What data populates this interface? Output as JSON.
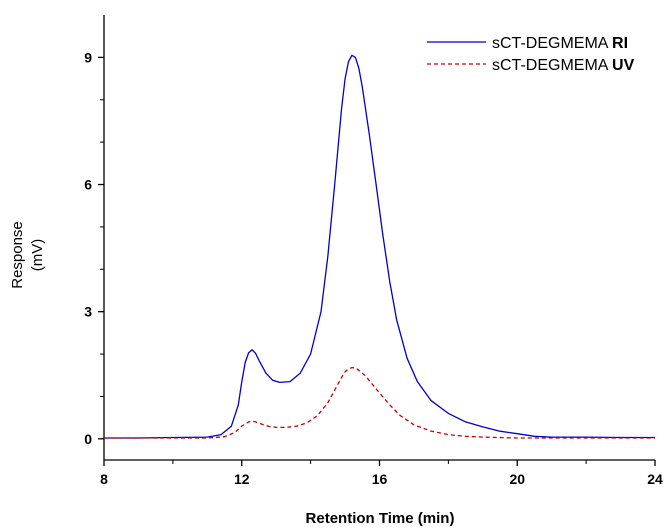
{
  "chart_data": {
    "type": "line",
    "xlabel": "Retention Time (min)",
    "ylabel_line1": "Response",
    "ylabel_line2": "(mV)",
    "xlim": [
      8,
      24
    ],
    "ylim": [
      -0.5,
      10
    ],
    "xticks": [
      8,
      12,
      16,
      20,
      24
    ],
    "yticks": [
      0,
      3,
      6,
      9
    ],
    "grid": false,
    "legend_position": "top-right",
    "series": [
      {
        "name_prefix": "sCT-DEGMEMA ",
        "name_suffix": "RI",
        "color": "#0000cc",
        "dash": "solid",
        "x": [
          8,
          9,
          10,
          11,
          11.4,
          11.7,
          11.9,
          12.0,
          12.1,
          12.2,
          12.3,
          12.4,
          12.5,
          12.7,
          12.9,
          13.1,
          13.4,
          13.7,
          14.0,
          14.3,
          14.5,
          14.7,
          14.9,
          15.0,
          15.1,
          15.2,
          15.3,
          15.4,
          15.5,
          15.7,
          15.9,
          16.1,
          16.3,
          16.5,
          16.8,
          17.1,
          17.5,
          18.0,
          18.5,
          19.0,
          19.5,
          20.0,
          20.5,
          21,
          22,
          23,
          24
        ],
        "y": [
          0.02,
          0.02,
          0.03,
          0.04,
          0.1,
          0.3,
          0.8,
          1.35,
          1.8,
          2.03,
          2.1,
          2.02,
          1.85,
          1.55,
          1.38,
          1.33,
          1.35,
          1.55,
          2.0,
          3.0,
          4.3,
          6.0,
          7.8,
          8.5,
          8.9,
          9.05,
          9.0,
          8.75,
          8.3,
          7.2,
          6.0,
          4.8,
          3.7,
          2.8,
          1.9,
          1.35,
          0.9,
          0.6,
          0.4,
          0.28,
          0.18,
          0.12,
          0.06,
          0.04,
          0.04,
          0.03,
          0.03
        ]
      },
      {
        "name_prefix": "sCT-DEGMEMA ",
        "name_suffix": "UV",
        "color": "#cc0000",
        "dash": "dashed",
        "x": [
          8,
          9,
          10,
          11,
          11.5,
          11.8,
          12.0,
          12.2,
          12.3,
          12.4,
          12.6,
          12.8,
          13.0,
          13.3,
          13.6,
          13.9,
          14.2,
          14.5,
          14.7,
          14.9,
          15.0,
          15.1,
          15.2,
          15.3,
          15.4,
          15.6,
          15.8,
          16.0,
          16.3,
          16.6,
          17.0,
          17.5,
          18.0,
          18.5,
          19.0,
          20.0,
          21,
          22,
          23,
          24
        ],
        "y": [
          0.02,
          0.02,
          0.02,
          0.02,
          0.05,
          0.15,
          0.3,
          0.4,
          0.42,
          0.4,
          0.34,
          0.29,
          0.27,
          0.27,
          0.3,
          0.38,
          0.55,
          0.85,
          1.15,
          1.45,
          1.58,
          1.65,
          1.68,
          1.67,
          1.62,
          1.48,
          1.28,
          1.08,
          0.8,
          0.55,
          0.33,
          0.18,
          0.1,
          0.06,
          0.04,
          0.02,
          0.02,
          0.02,
          0.02,
          0.02
        ]
      }
    ]
  }
}
